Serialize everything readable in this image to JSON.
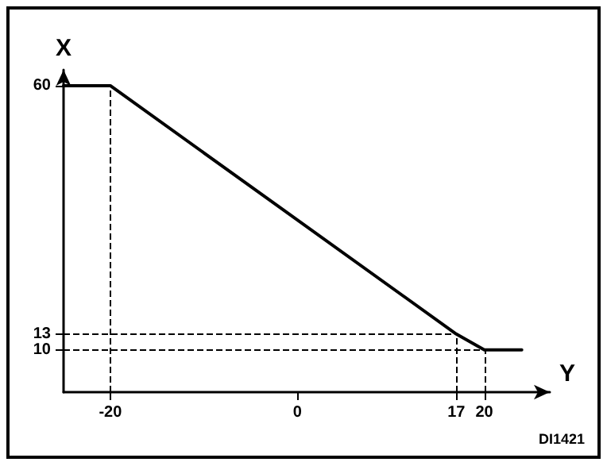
{
  "chart_data": {
    "type": "line",
    "xlabel": "Y",
    "ylabel": "X",
    "x": [
      -25,
      -20,
      17,
      20,
      24
    ],
    "series": [
      {
        "color": "#000000",
        "values": [
          60,
          60,
          13,
          10,
          10
        ]
      }
    ],
    "xlim": [
      -25,
      27
    ],
    "xticks": [
      -20,
      0,
      17,
      20
    ],
    "ylim": [
      2,
      63
    ],
    "yticks": [
      10,
      13,
      60
    ],
    "ref_lines": [
      {
        "axis": "y",
        "value": 13,
        "color": "#000000",
        "line_style": "dashed"
      },
      {
        "axis": "y",
        "value": 10,
        "color": "#000000",
        "line_style": "dashed"
      },
      {
        "axis": "x",
        "value": -20,
        "color": "#000000",
        "line_style": "dashed"
      },
      {
        "axis": "x",
        "value": 17,
        "color": "#000000",
        "line_style": "dashed"
      },
      {
        "axis": "x",
        "value": 20,
        "color": "#000000",
        "line_style": "dashed"
      }
    ],
    "annotations": [
      "DI1421"
    ],
    "grid": false,
    "marker": "none",
    "line_style": "solid"
  }
}
